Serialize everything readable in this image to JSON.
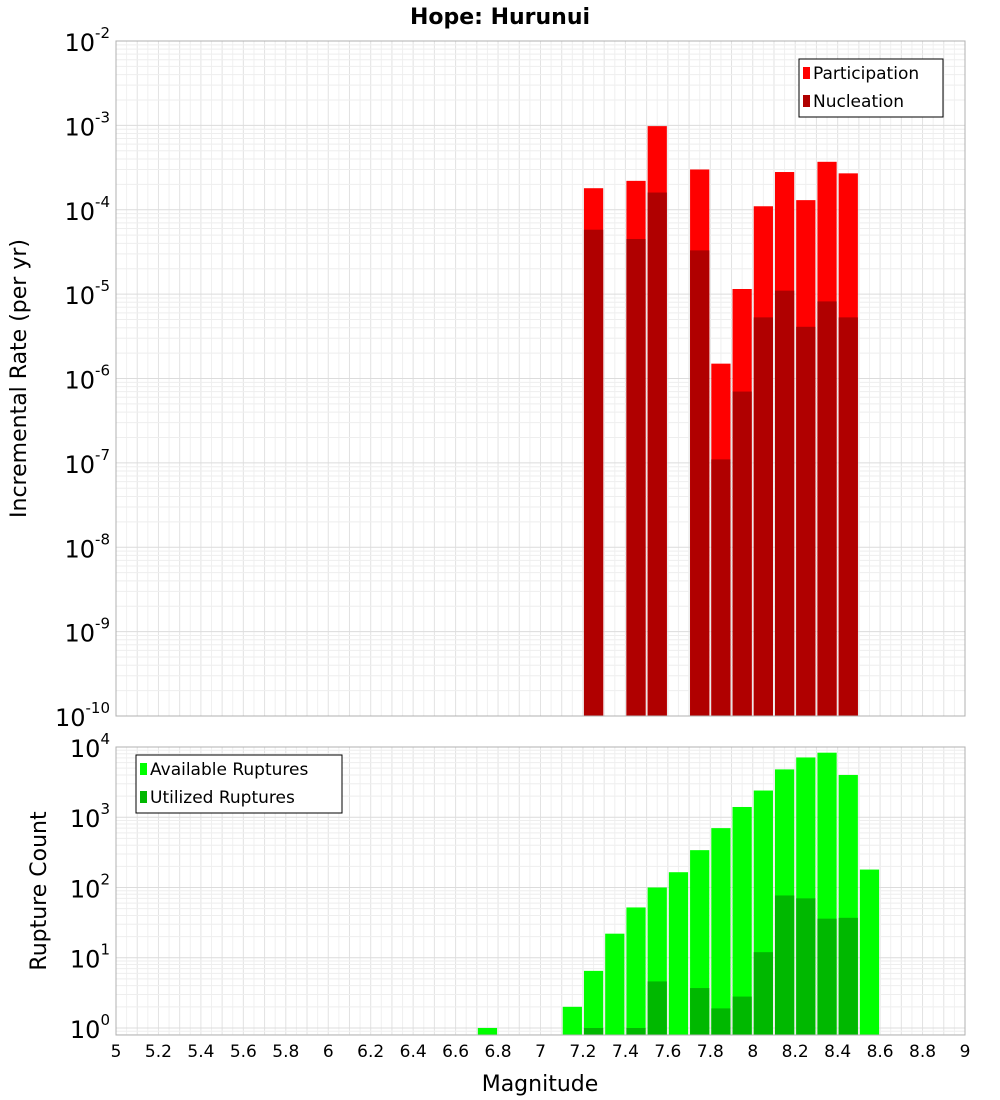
{
  "chart_data": {
    "title": "Hope: Hurunui",
    "xlabel": "Magnitude",
    "xlim": [
      5,
      9
    ],
    "xticks": [
      "5",
      "5.2",
      "5.4",
      "5.6",
      "5.8",
      "6",
      "6.2",
      "6.4",
      "6.6",
      "6.8",
      "7",
      "7.2",
      "7.4",
      "7.6",
      "7.8",
      "8",
      "8.2",
      "8.4",
      "8.6",
      "8.8",
      "9"
    ],
    "bin_width": 0.1,
    "panels": [
      {
        "id": "rates",
        "type": "bar",
        "ylabel": "Incremental Rate (per yr)",
        "yscale": "log",
        "ylim_exp": [
          -10,
          -2
        ],
        "legend": [
          "Participation",
          "Nucleation"
        ],
        "legend_position": "top-right",
        "series": [
          {
            "name": "Participation",
            "color": "#ff0000",
            "x": [
              7.25,
              7.45,
              7.55,
              7.75,
              7.85,
              7.95,
              8.05,
              8.15,
              8.25,
              8.35,
              8.45
            ],
            "values": [
              0.00018,
              0.00022,
              0.00098,
              0.0003,
              1.5e-06,
              1.15e-05,
              0.00011,
              0.00028,
              0.00013,
              0.00037,
              0.00027
            ]
          },
          {
            "name": "Nucleation",
            "color": "#b00000",
            "x": [
              7.25,
              7.45,
              7.55,
              7.75,
              7.85,
              7.95,
              8.05,
              8.15,
              8.25,
              8.35,
              8.45
            ],
            "values": [
              5.8e-05,
              4.5e-05,
              0.00016,
              3.3e-05,
              1.1e-07,
              7e-07,
              5.3e-06,
              1.1e-05,
              4.1e-06,
              8.2e-06,
              5.3e-06
            ]
          }
        ]
      },
      {
        "id": "counts",
        "type": "bar",
        "ylabel": "Rupture Count",
        "yscale": "log",
        "ylim_exp": [
          -0.1,
          4
        ],
        "legend": [
          "Available Ruptures",
          "Utilized Ruptures"
        ],
        "legend_position": "top-left",
        "series": [
          {
            "name": "Available Ruptures",
            "color": "#00ff00",
            "x": [
              6.75,
              7.15,
              7.25,
              7.35,
              7.45,
              7.55,
              7.65,
              7.75,
              7.85,
              7.95,
              8.05,
              8.15,
              8.25,
              8.35,
              8.45,
              8.55
            ],
            "values": [
              1,
              2,
              6.5,
              22,
              52,
              100,
              165,
              340,
              700,
              1400,
              2400,
              4800,
              7100,
              8300,
              4000,
              180
            ]
          },
          {
            "name": "Utilized Ruptures",
            "color": "#00b800",
            "x": [
              7.25,
              7.45,
              7.55,
              7.75,
              7.85,
              7.95,
              8.05,
              8.15,
              8.25,
              8.35,
              8.45
            ],
            "values": [
              1,
              1,
              4.6,
              3.7,
              1.9,
              2.8,
              12,
              77,
              70,
              36,
              37
            ]
          }
        ]
      }
    ]
  }
}
